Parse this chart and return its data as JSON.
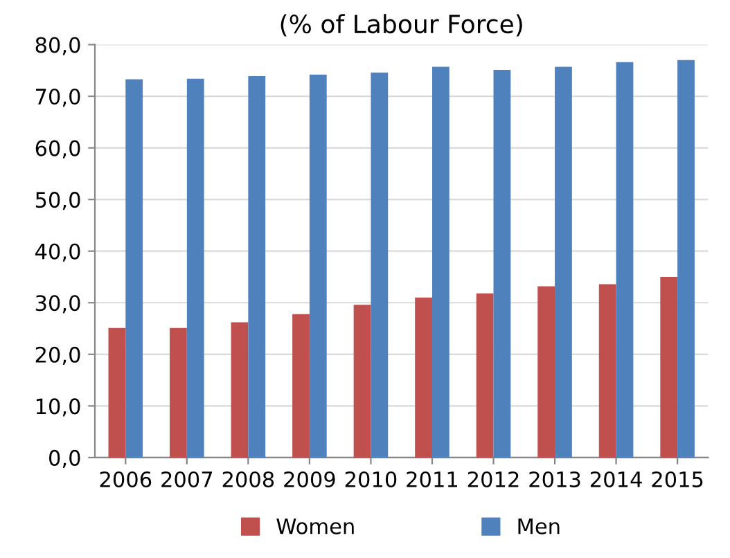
{
  "chart_data": {
    "type": "bar",
    "title": "(% of Labour Force)",
    "categories": [
      "2006",
      "2007",
      "2008",
      "2009",
      "2010",
      "2011",
      "2012",
      "2013",
      "2014",
      "2015"
    ],
    "series": [
      {
        "name": "Women",
        "color": "#c0504d",
        "values": [
          25.1,
          25.1,
          26.2,
          27.8,
          29.6,
          31.0,
          31.8,
          33.2,
          33.6,
          35.0
        ]
      },
      {
        "name": "Men",
        "color": "#4f81bd",
        "values": [
          73.3,
          73.4,
          73.9,
          74.2,
          74.6,
          75.7,
          75.1,
          75.7,
          76.6,
          77.0
        ]
      }
    ],
    "ylim": [
      0,
      80
    ],
    "yticks": [
      {
        "value": 0,
        "label": "0,0"
      },
      {
        "value": 10,
        "label": "10,0"
      },
      {
        "value": 20,
        "label": "20,0"
      },
      {
        "value": 30,
        "label": "30,0"
      },
      {
        "value": 40,
        "label": "40,0"
      },
      {
        "value": 50,
        "label": "50,0"
      },
      {
        "value": 60,
        "label": "60,0"
      },
      {
        "value": 70,
        "label": "70,0"
      },
      {
        "value": 80,
        "label": "80,0"
      }
    ],
    "grid": "y",
    "legend": "bottom"
  }
}
